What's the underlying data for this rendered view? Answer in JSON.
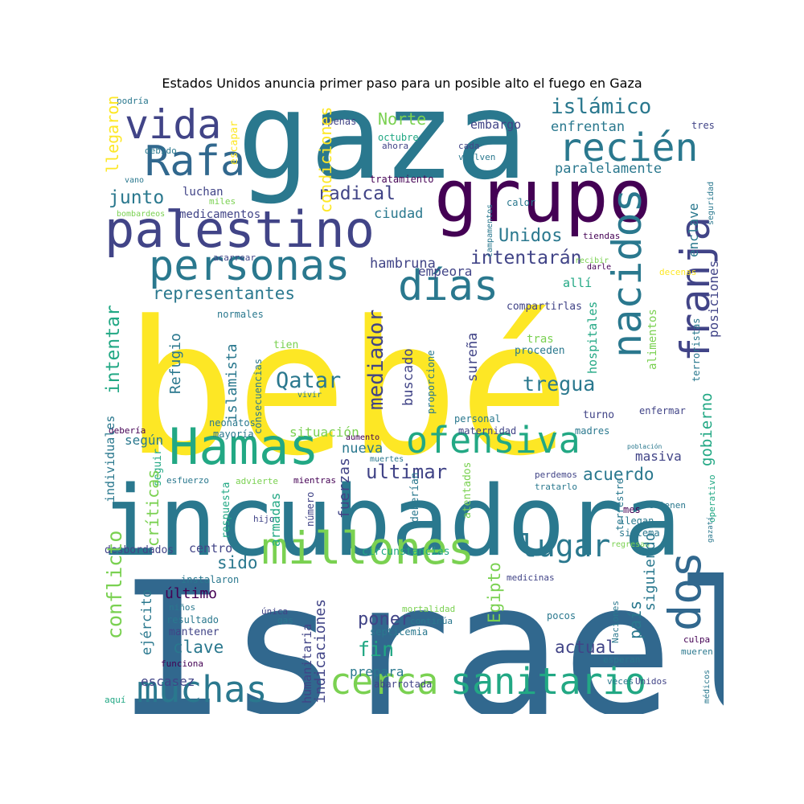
{
  "title": "Estados Unidos anuncia primer paso para un posible alto el fuego en Gaza",
  "colors": {
    "yellow": "#fde725",
    "lightgreen": "#7ad151",
    "green": "#22a884",
    "teal": "#2a788e",
    "blue": "#31688e",
    "indigo": "#414487",
    "purple": "#440154"
  },
  "words": [
    {
      "text": "bebé",
      "color": "yellow"
    },
    {
      "text": "Israel",
      "color": "blue"
    },
    {
      "text": "gaza",
      "color": "teal"
    },
    {
      "text": "incubadora",
      "color": "teal"
    },
    {
      "text": "grupo",
      "color": "purple"
    },
    {
      "text": "palestino",
      "color": "indigo"
    },
    {
      "text": "Hamas",
      "color": "green"
    },
    {
      "text": "millones",
      "color": "lightgreen"
    },
    {
      "text": "nacidos",
      "color": "teal"
    },
    {
      "text": "franja",
      "color": "indigo"
    },
    {
      "text": "ofensiva",
      "color": "green"
    },
    {
      "text": "sanitario",
      "color": "green"
    },
    {
      "text": "muchas",
      "color": "teal"
    },
    {
      "text": "cerca",
      "color": "lightgreen"
    },
    {
      "text": "personas",
      "color": "teal"
    },
    {
      "text": "días",
      "color": "teal"
    },
    {
      "text": "dos",
      "color": "blue"
    },
    {
      "text": "Rafa",
      "color": "blue"
    },
    {
      "text": "vida",
      "color": "indigo"
    },
    {
      "text": "recién",
      "color": "teal"
    },
    {
      "text": "lugar",
      "color": "teal"
    },
    {
      "text": "islámico",
      "color": "teal"
    },
    {
      "text": "Norte",
      "color": "lightgreen"
    },
    {
      "text": "embargo",
      "color": "indigo"
    },
    {
      "text": "enfrentan",
      "color": "teal"
    },
    {
      "text": "paralelamente",
      "color": "teal"
    },
    {
      "text": "radical",
      "color": "indigo"
    },
    {
      "text": "Unidos",
      "color": "teal"
    },
    {
      "text": "intentarán",
      "color": "indigo"
    },
    {
      "text": "ciudad",
      "color": "teal"
    },
    {
      "text": "hambruna",
      "color": "indigo"
    },
    {
      "text": "empeora",
      "color": "indigo"
    },
    {
      "text": "junto",
      "color": "teal"
    },
    {
      "text": "luchan",
      "color": "indigo"
    },
    {
      "text": "medicamentos",
      "color": "indigo"
    },
    {
      "text": "representantes",
      "color": "teal"
    },
    {
      "text": "allí",
      "color": "green"
    },
    {
      "text": "compartirlas",
      "color": "indigo"
    },
    {
      "text": "normales",
      "color": "teal"
    },
    {
      "text": "acarrear",
      "color": "indigo"
    },
    {
      "text": "Qatar",
      "color": "teal"
    },
    {
      "text": "tregua",
      "color": "teal"
    },
    {
      "text": "tras",
      "color": "lightgreen"
    },
    {
      "text": "proceden",
      "color": "teal"
    },
    {
      "text": "tien",
      "color": "lightgreen"
    },
    {
      "text": "situación",
      "color": "lightgreen"
    },
    {
      "text": "según",
      "color": "teal"
    },
    {
      "text": "acuerdo",
      "color": "teal"
    },
    {
      "text": "ultimar",
      "color": "indigo"
    },
    {
      "text": "nueva",
      "color": "teal"
    },
    {
      "text": "masiva",
      "color": "indigo"
    },
    {
      "text": "enfermar",
      "color": "indigo"
    },
    {
      "text": "turno",
      "color": "indigo"
    },
    {
      "text": "madres",
      "color": "teal"
    },
    {
      "text": "personal",
      "color": "teal"
    },
    {
      "text": "maternidad",
      "color": "indigo"
    },
    {
      "text": "aumento",
      "color": "purple"
    },
    {
      "text": "muertes",
      "color": "teal"
    },
    {
      "text": "perdemos",
      "color": "indigo"
    },
    {
      "text": "tratarlo",
      "color": "teal"
    },
    {
      "text": "población",
      "color": "teal"
    },
    {
      "text": "neonatos",
      "color": "teal"
    },
    {
      "text": "debería",
      "color": "purple"
    },
    {
      "text": "mayoría",
      "color": "teal"
    },
    {
      "text": "vivir",
      "color": "teal"
    },
    {
      "text": "esfuerzo",
      "color": "teal"
    },
    {
      "text": "advierte",
      "color": "lightgreen"
    },
    {
      "text": "mientras",
      "color": "purple"
    },
    {
      "text": "hijo",
      "color": "indigo"
    },
    {
      "text": "mes",
      "color": "purple"
    },
    {
      "text": "retienen",
      "color": "teal"
    },
    {
      "text": "llegan",
      "color": "teal"
    },
    {
      "text": "sistema",
      "color": "teal"
    },
    {
      "text": "regresan",
      "color": "lightgreen"
    },
    {
      "text": "desbordados",
      "color": "indigo"
    },
    {
      "text": "centro",
      "color": "indigo"
    },
    {
      "text": "sido",
      "color": "teal"
    },
    {
      "text": "circunstancias",
      "color": "green"
    },
    {
      "text": "instalaron",
      "color": "teal"
    },
    {
      "text": "último",
      "color": "purple"
    },
    {
      "text": "niños",
      "color": "teal"
    },
    {
      "text": "resultado",
      "color": "teal"
    },
    {
      "text": "mantener",
      "color": "indigo"
    },
    {
      "text": "funciona",
      "color": "purple"
    },
    {
      "text": "escasez",
      "color": "indigo"
    },
    {
      "text": "medicinas",
      "color": "indigo"
    },
    {
      "text": "mortalidad",
      "color": "lightgreen"
    },
    {
      "text": "única",
      "color": "indigo"
    },
    {
      "text": "gas",
      "color": "teal"
    },
    {
      "text": "continúa",
      "color": "teal"
    },
    {
      "text": "septicemia",
      "color": "teal"
    },
    {
      "text": "pocos",
      "color": "teal"
    },
    {
      "text": "poner",
      "color": "indigo"
    },
    {
      "text": "fin",
      "color": "green"
    },
    {
      "text": "prepara",
      "color": "teal"
    },
    {
      "text": "clave",
      "color": "teal"
    },
    {
      "text": "actual",
      "color": "indigo"
    },
    {
      "text": "culpa",
      "color": "purple"
    },
    {
      "text": "mueren",
      "color": "teal"
    },
    {
      "text": "esperan",
      "color": "teal"
    },
    {
      "text": "abarrotada",
      "color": "indigo"
    },
    {
      "text": "veces",
      "color": "teal"
    },
    {
      "text": "Unidos",
      "color": "indigo"
    },
    {
      "text": "aquí",
      "color": "green"
    },
    {
      "text": "podría",
      "color": "teal"
    },
    {
      "text": "debido",
      "color": "teal"
    },
    {
      "text": "vano",
      "color": "teal"
    },
    {
      "text": "apenas",
      "color": "indigo"
    },
    {
      "text": "octubre",
      "color": "green"
    },
    {
      "text": "ahora",
      "color": "indigo"
    },
    {
      "text": "cada",
      "color": "indigo"
    },
    {
      "text": "vuelven",
      "color": "teal"
    },
    {
      "text": "tratamiento",
      "color": "purple"
    },
    {
      "text": "miles",
      "color": "lightgreen"
    },
    {
      "text": "bombardeos",
      "color": "lightgreen"
    },
    {
      "text": "calor",
      "color": "teal"
    },
    {
      "text": "tiendas",
      "color": "purple"
    },
    {
      "text": "recibir",
      "color": "lightgreen"
    },
    {
      "text": "decenas",
      "color": "yellow"
    },
    {
      "text": "darle",
      "color": "purple"
    },
    {
      "text": "tres",
      "color": "indigo"
    },
    {
      "text": "llegaron",
      "color": "yellow"
    },
    {
      "text": "escapar",
      "color": "yellow"
    },
    {
      "text": "condiciones",
      "color": "yellow"
    },
    {
      "text": "campamentos",
      "color": "teal"
    },
    {
      "text": "enclave",
      "color": "teal"
    },
    {
      "text": "seguridad",
      "color": "teal"
    },
    {
      "text": "posiciones",
      "color": "indigo"
    },
    {
      "text": "intentar",
      "color": "green"
    },
    {
      "text": "Refugio",
      "color": "teal"
    },
    {
      "text": "islamista",
      "color": "teal"
    },
    {
      "text": "consecuencias",
      "color": "teal"
    },
    {
      "text": "mediador",
      "color": "indigo"
    },
    {
      "text": "buscado",
      "color": "indigo"
    },
    {
      "text": "proporcione",
      "color": "teal"
    },
    {
      "text": "sureña",
      "color": "indigo"
    },
    {
      "text": "hospitales",
      "color": "green"
    },
    {
      "text": "alimentos",
      "color": "lightgreen"
    },
    {
      "text": "terroristas",
      "color": "teal"
    },
    {
      "text": "gobierno",
      "color": "green"
    },
    {
      "text": "individuales",
      "color": "teal"
    },
    {
      "text": "seguir",
      "color": "green"
    },
    {
      "text": "críticas",
      "color": "lightgreen"
    },
    {
      "text": "respuesta",
      "color": "green"
    },
    {
      "text": "armadas",
      "color": "green"
    },
    {
      "text": "número",
      "color": "indigo"
    },
    {
      "text": "fuerzas",
      "color": "indigo"
    },
    {
      "text": "deberían",
      "color": "teal"
    },
    {
      "text": "atentados",
      "color": "lightgreen"
    },
    {
      "text": "terrestre",
      "color": "teal"
    },
    {
      "text": "operativo",
      "color": "green"
    },
    {
      "text": "gazatí",
      "color": "teal"
    },
    {
      "text": "conflicto",
      "color": "lightgreen"
    },
    {
      "text": "ejército",
      "color": "teal"
    },
    {
      "text": "humanitaria",
      "color": "indigo"
    },
    {
      "text": "indicaciones",
      "color": "indigo"
    },
    {
      "text": "Egipto",
      "color": "lightgreen"
    },
    {
      "text": "país",
      "color": "teal"
    },
    {
      "text": "siguiendo",
      "color": "teal"
    },
    {
      "text": "Naciones",
      "color": "teal"
    },
    {
      "text": "médicos",
      "color": "teal"
    }
  ]
}
